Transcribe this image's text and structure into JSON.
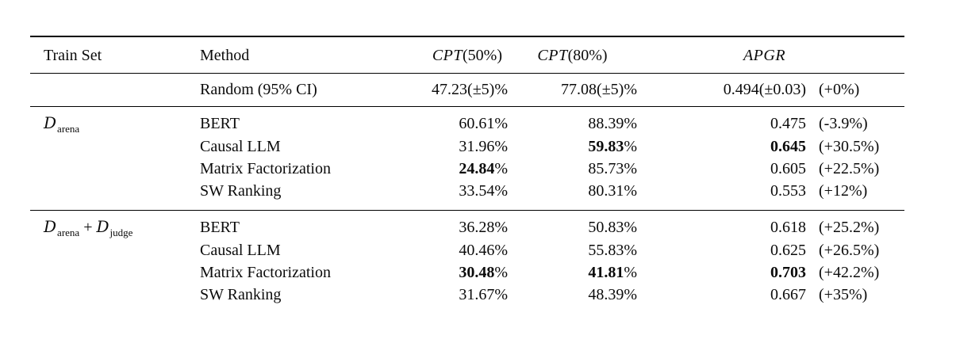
{
  "colors": {
    "background": "#ffffff",
    "text": "#0b0b0b",
    "rule": "#000000"
  },
  "chart_data": {
    "type": "table",
    "dataset_symbol": "D",
    "header": {
      "train_set": "Train Set",
      "method": "Method",
      "metric_cols": [
        {
          "italic": "CPT",
          "rest": "(50%)"
        },
        {
          "italic": "CPT",
          "rest": "(80%)"
        },
        {
          "italic": "APGR",
          "rest": ""
        }
      ]
    },
    "baseline_row": {
      "train_set": "",
      "method": "Random (95% CI)",
      "cpt50": "47.23(±5)%",
      "cpt80": "77.08(±5)%",
      "apgr": "0.494(±0.03)",
      "delta": "(+0%)"
    },
    "groups": [
      {
        "train_set": {
          "datasets": [
            "arena"
          ]
        },
        "rows": [
          {
            "method": "BERT",
            "cpt50": "60.61%",
            "cpt80": "88.39%",
            "apgr": "0.475",
            "delta": "(-3.9%)"
          },
          {
            "method": "Causal LLM",
            "cpt50": "31.96%",
            "cpt80": {
              "bold": "59.83",
              "rest": "%"
            },
            "apgr": {
              "bold": "0.645",
              "rest": ""
            },
            "delta": "(+30.5%)"
          },
          {
            "method": "Matrix Factorization",
            "cpt50": {
              "bold": "24.84",
              "rest": "%"
            },
            "cpt80": "85.73%",
            "apgr": "0.605",
            "delta": "(+22.5%)"
          },
          {
            "method": "SW Ranking",
            "cpt50": "33.54%",
            "cpt80": "80.31%",
            "apgr": "0.553",
            "delta": "(+12%)"
          }
        ]
      },
      {
        "train_set": {
          "datasets": [
            "arena",
            "judge"
          ]
        },
        "rows": [
          {
            "method": "BERT",
            "cpt50": "36.28%",
            "cpt80": "50.83%",
            "apgr": "0.618",
            "delta": "(+25.2%)"
          },
          {
            "method": "Causal LLM",
            "cpt50": "40.46%",
            "cpt80": "55.83%",
            "apgr": "0.625",
            "delta": "(+26.5%)"
          },
          {
            "method": "Matrix Factorization",
            "cpt50": {
              "bold": "30.48",
              "rest": "%"
            },
            "cpt80": {
              "bold": "41.81",
              "rest": "%"
            },
            "apgr": {
              "bold": "0.703",
              "rest": ""
            },
            "delta": "(+42.2%)"
          },
          {
            "method": "SW Ranking",
            "cpt50": "31.67%",
            "cpt80": "48.39%",
            "apgr": "0.667",
            "delta": "(+35%)"
          }
        ]
      }
    ]
  }
}
